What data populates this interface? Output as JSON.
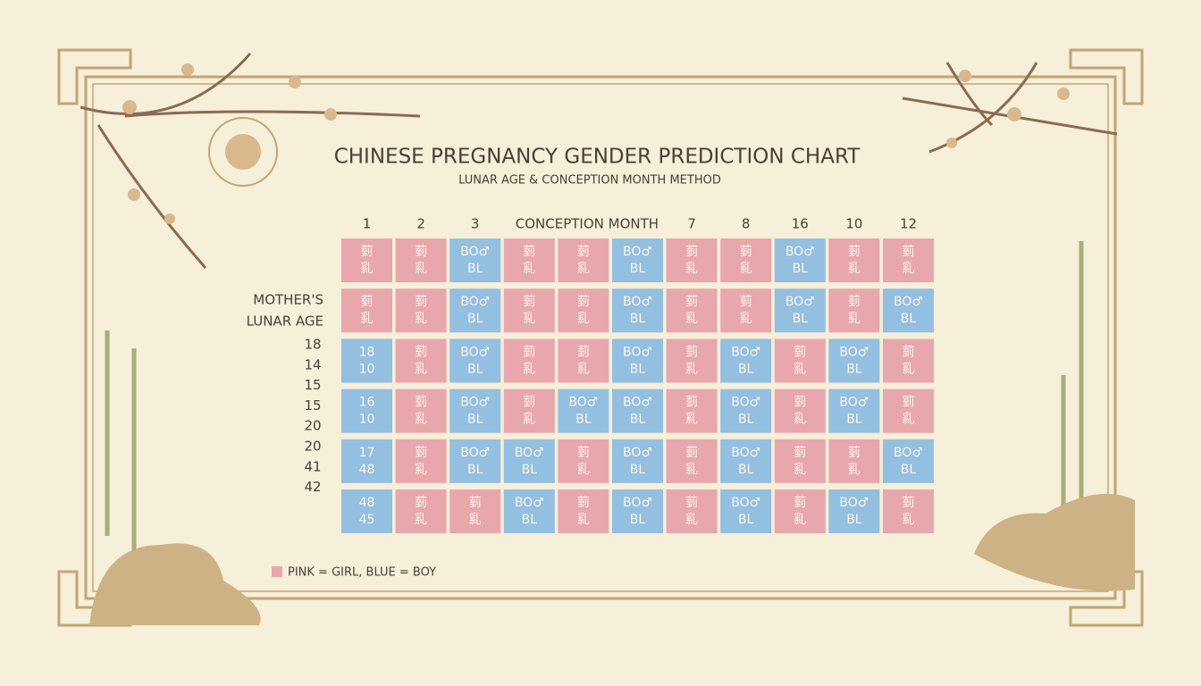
{
  "header": {
    "title": "CHINESE PREGNANCY GENDER PREDICTION CHART",
    "subtitle": "LUNAR AGE & CONCEPTION MONTH METHOD"
  },
  "columns": [
    "1",
    "2",
    "3",
    "CONCEPTION MONTH",
    "7",
    "8",
    "16",
    "10",
    "12"
  ],
  "row_label": [
    "MOTHER'S",
    "LUNAR AGE"
  ],
  "ages": [
    "18",
    "14",
    "15",
    "15",
    "20",
    "20",
    "41",
    "42"
  ],
  "colors": {
    "pink": "#e8a7ad",
    "blue": "#93bfe0"
  },
  "grid": [
    [
      "pink",
      "pink",
      "blue",
      "pink",
      "pink",
      "blue",
      "pink",
      "pink",
      "blue",
      "pink",
      "pink"
    ],
    [
      "pink",
      "pink",
      "blue",
      "pink",
      "pink",
      "blue",
      "pink",
      "pink",
      "blue",
      "pink",
      "blue"
    ],
    [
      "blue",
      "pink",
      "blue",
      "pink",
      "pink",
      "blue",
      "pink",
      "blue",
      "pink",
      "blue",
      "pink"
    ],
    [
      "blue",
      "pink",
      "blue",
      "pink",
      "blue",
      "blue",
      "pink",
      "blue",
      "pink",
      "blue",
      "pink"
    ],
    [
      "blue",
      "pink",
      "blue",
      "blue",
      "pink",
      "blue",
      "pink",
      "blue",
      "pink",
      "pink",
      "blue"
    ],
    [
      "blue",
      "pink",
      "pink",
      "blue",
      "pink",
      "blue",
      "pink",
      "blue",
      "pink",
      "blue",
      "pink"
    ]
  ],
  "cell_text": {
    "pink": [
      "菿",
      "乿"
    ],
    "blue": [
      "BO♂",
      "BL"
    ]
  },
  "first_column_text": [
    null,
    null,
    [
      "18",
      "10"
    ],
    [
      "16",
      "10"
    ],
    [
      "17",
      "48"
    ],
    [
      "48",
      "45"
    ]
  ],
  "legend": "PINK = GIRL, BLUE = BOY"
}
